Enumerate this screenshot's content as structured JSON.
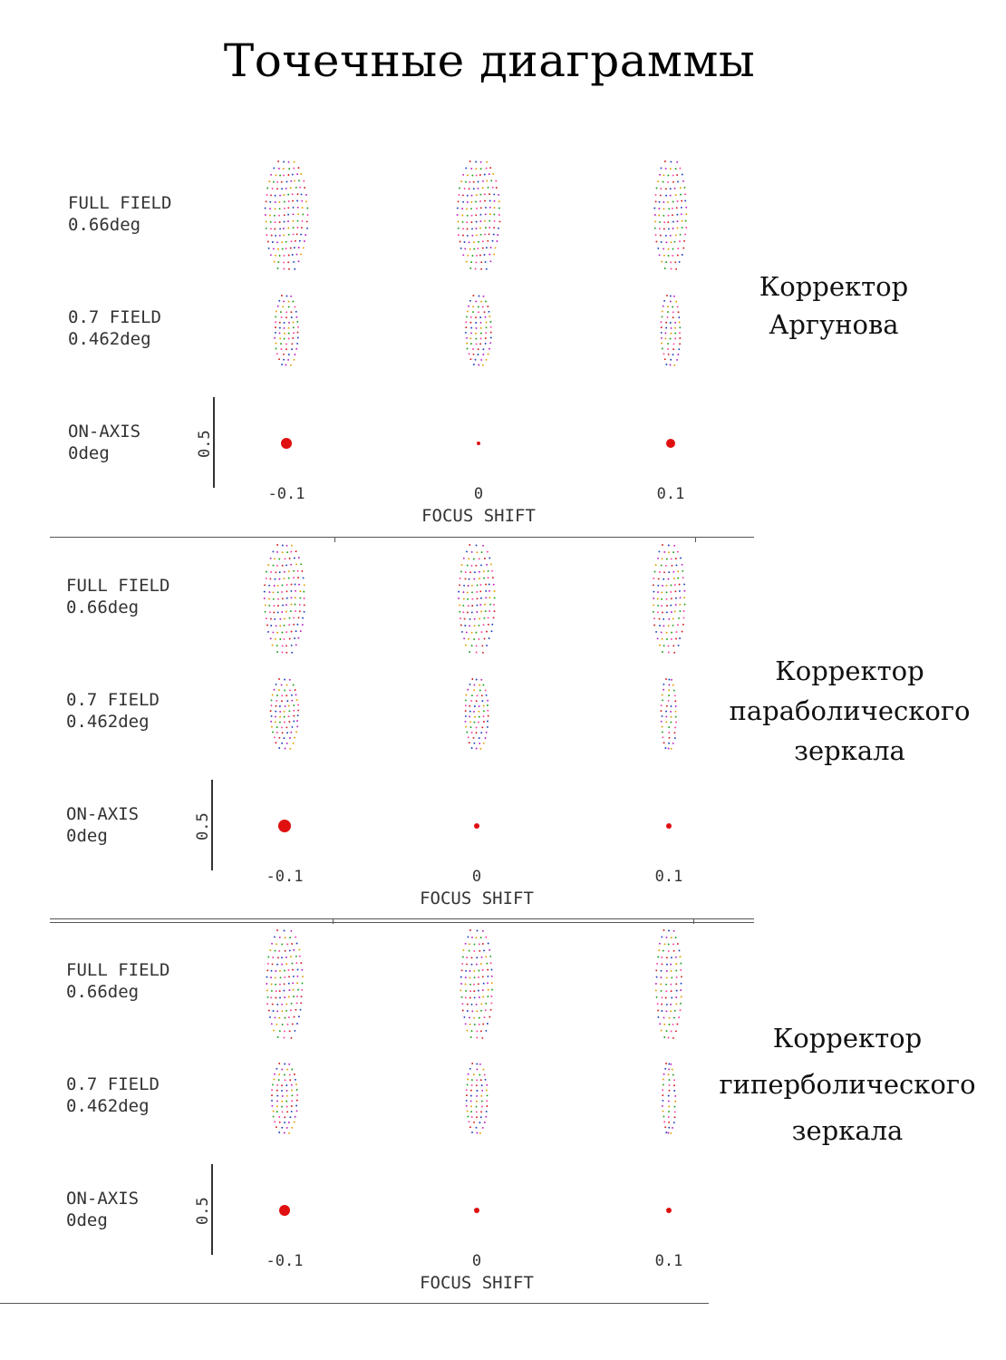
{
  "title": "Точечные диаграммы",
  "panels": [
    {
      "corrector": [
        "Корректор",
        "Аргунова"
      ],
      "rows": [
        {
          "field": "FULL FIELD",
          "angle": "0.66deg"
        },
        {
          "field": "0.7 FIELD",
          "angle": "0.462deg"
        },
        {
          "field": "ON-AXIS",
          "angle": "0deg"
        }
      ],
      "scale_label": "0.5",
      "x_ticks": [
        "-0.1",
        "0",
        "0.1"
      ],
      "x_title": "FOCUS SHIFT"
    },
    {
      "corrector": [
        "Корректор",
        "параболического",
        "зеркала"
      ],
      "rows": [
        {
          "field": "FULL FIELD",
          "angle": "0.66deg"
        },
        {
          "field": "0.7 FIELD",
          "angle": "0.462deg"
        },
        {
          "field": "ON-AXIS",
          "angle": "0deg"
        }
      ],
      "scale_label": "0.5",
      "x_ticks": [
        "-0.1",
        "0",
        "0.1"
      ],
      "x_title": "FOCUS SHIFT"
    },
    {
      "corrector": [
        "Корректор",
        "гиперболического",
        "зеркала"
      ],
      "rows": [
        {
          "field": "FULL FIELD",
          "angle": "0.66deg"
        },
        {
          "field": "0.7 FIELD",
          "angle": "0.462deg"
        },
        {
          "field": "ON-AXIS",
          "angle": "0deg"
        }
      ],
      "scale_label": "0.5",
      "x_ticks": [
        "-0.1",
        "0",
        "0.1"
      ],
      "x_title": "FOCUS SHIFT"
    }
  ],
  "colors": {
    "spot_palette": [
      "#d02020",
      "#2040c0",
      "#c020c0",
      "#e0a000",
      "#20a020",
      "#ff40a0"
    ],
    "on_axis": "#e01010"
  }
}
